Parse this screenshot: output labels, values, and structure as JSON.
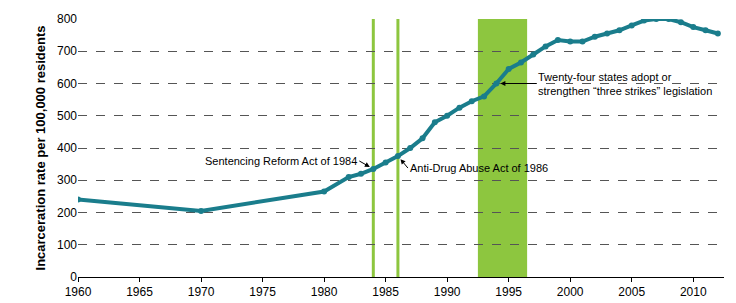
{
  "chart_data": {
    "type": "line",
    "y_label": "Incarceration rate per 100,000 residents",
    "x": [
      1960,
      1970,
      1980,
      1982,
      1983,
      1984,
      1985,
      1986,
      1987,
      1988,
      1989,
      1990,
      1991,
      1992,
      1993,
      1994,
      1995,
      1996,
      1997,
      1998,
      1999,
      2000,
      2001,
      2002,
      2003,
      2004,
      2005,
      2006,
      2007,
      2008,
      2009,
      2010,
      2011,
      2012
    ],
    "values": [
      240,
      205,
      265,
      310,
      320,
      335,
      355,
      375,
      400,
      430,
      480,
      500,
      525,
      545,
      560,
      600,
      645,
      665,
      690,
      715,
      735,
      730,
      730,
      745,
      755,
      765,
      780,
      795,
      800,
      800,
      790,
      775,
      765,
      755
    ],
    "color": "#1a7d8c",
    "marker": "circle",
    "line_style": "solid",
    "xlim": [
      1960,
      2012.5
    ],
    "xticks": [
      1960,
      1965,
      1970,
      1975,
      1980,
      1985,
      1990,
      1995,
      2000,
      2005,
      2010
    ],
    "ylim": [
      0,
      800
    ],
    "yticks": [
      0,
      100,
      200,
      300,
      400,
      500,
      600,
      700,
      800
    ],
    "grid": true,
    "annotations": [
      {
        "text": [
          "Sentencing Reform Act of 1984"
        ],
        "x": 1984,
        "span": [
          1984,
          1984
        ],
        "color": "#8dc63f"
      },
      {
        "text": [
          "Anti-Drug Abuse Act of 1986"
        ],
        "x": 1986,
        "span": [
          1986,
          1986
        ],
        "color": "#8dc63f"
      },
      {
        "text": [
          "Twenty-four states adopt or",
          "strengthen “three strikes” legislation"
        ],
        "x": 1994,
        "span": [
          1992.5,
          1996.5
        ],
        "color": "#8dc63f"
      }
    ]
  }
}
